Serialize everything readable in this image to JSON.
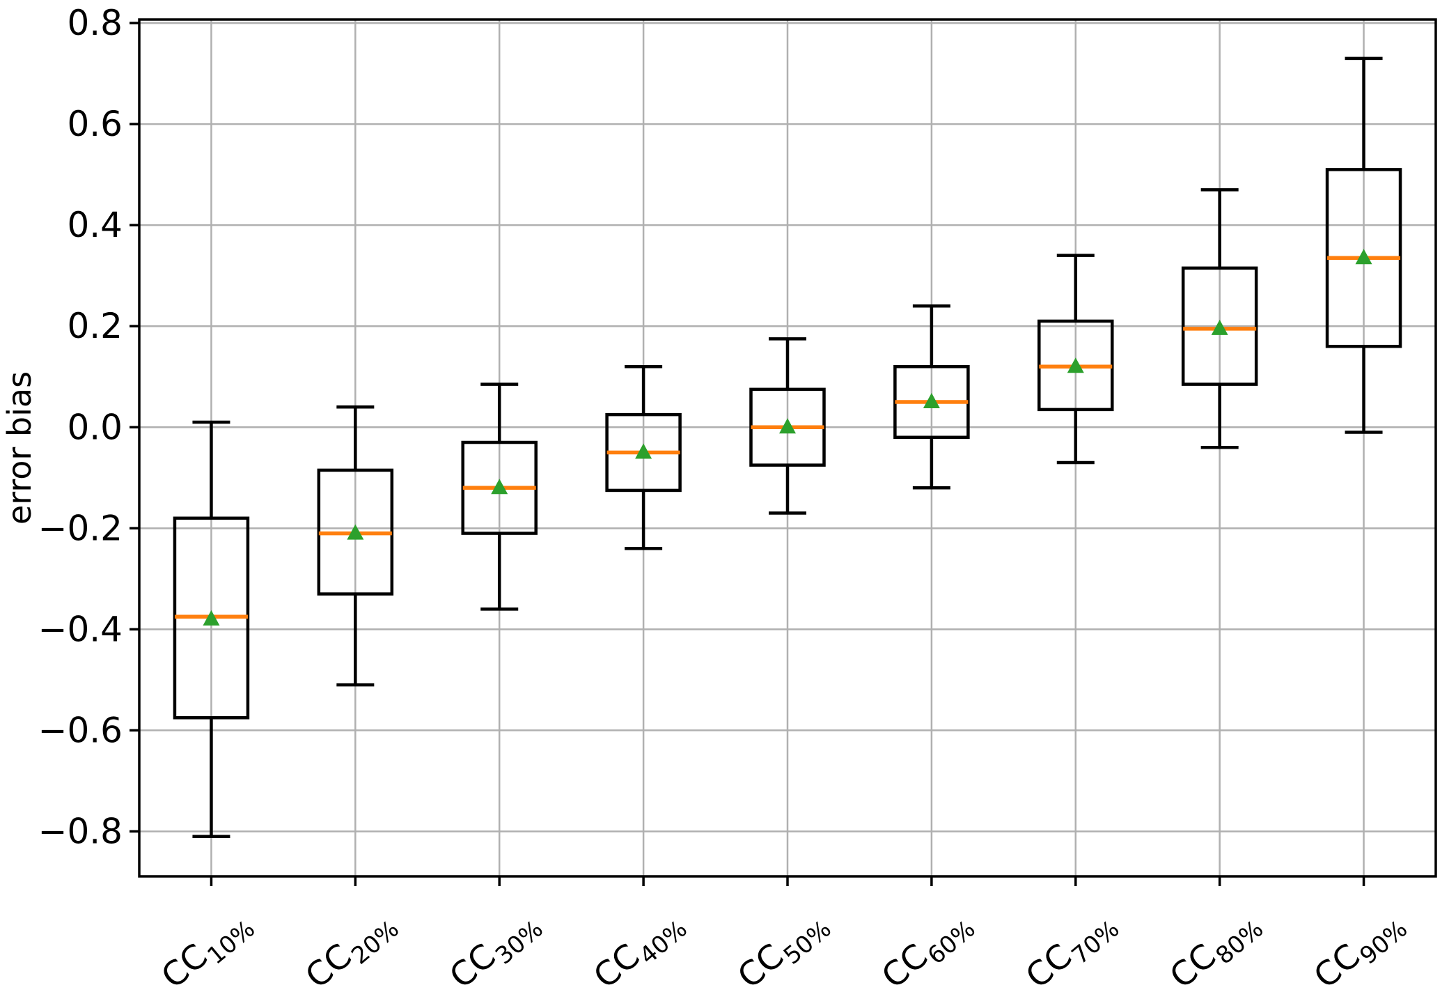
{
  "chart_data": {
    "type": "boxplot",
    "title": "",
    "xlabel": "",
    "ylabel": "error bias",
    "grid": true,
    "legend": "none",
    "ylim": [
      -0.889,
      0.807
    ],
    "yticks": [
      {
        "value": 0.8,
        "label": "0.8"
      },
      {
        "value": 0.6,
        "label": "0.6"
      },
      {
        "value": 0.4,
        "label": "0.4"
      },
      {
        "value": 0.2,
        "label": "0.2"
      },
      {
        "value": 0.0,
        "label": "0.0"
      },
      {
        "value": -0.2,
        "label": "−0.2"
      },
      {
        "value": -0.4,
        "label": "−0.4"
      },
      {
        "value": -0.6,
        "label": "−0.6"
      },
      {
        "value": -0.8,
        "label": "−0.8"
      }
    ],
    "categories": [
      "CC10%",
      "CC20%",
      "CC30%",
      "CC40%",
      "CC50%",
      "CC60%",
      "CC70%",
      "CC80%",
      "CC90%"
    ],
    "boxes": [
      {
        "label_base": "CC",
        "label_sub": "10%",
        "whislo": -0.81,
        "q1": -0.575,
        "med": -0.375,
        "mean": -0.38,
        "q3": -0.18,
        "whishi": 0.01
      },
      {
        "label_base": "CC",
        "label_sub": "20%",
        "whislo": -0.51,
        "q1": -0.33,
        "med": -0.21,
        "mean": -0.21,
        "q3": -0.085,
        "whishi": 0.04
      },
      {
        "label_base": "CC",
        "label_sub": "30%",
        "whislo": -0.36,
        "q1": -0.21,
        "med": -0.12,
        "mean": -0.12,
        "q3": -0.03,
        "whishi": 0.085
      },
      {
        "label_base": "CC",
        "label_sub": "40%",
        "whislo": -0.24,
        "q1": -0.125,
        "med": -0.05,
        "mean": -0.05,
        "q3": 0.025,
        "whishi": 0.12
      },
      {
        "label_base": "CC",
        "label_sub": "50%",
        "whislo": -0.17,
        "q1": -0.075,
        "med": 0.0,
        "mean": 0.0,
        "q3": 0.075,
        "whishi": 0.175
      },
      {
        "label_base": "CC",
        "label_sub": "60%",
        "whislo": -0.12,
        "q1": -0.02,
        "med": 0.05,
        "mean": 0.05,
        "q3": 0.12,
        "whishi": 0.24
      },
      {
        "label_base": "CC",
        "label_sub": "70%",
        "whislo": -0.07,
        "q1": 0.035,
        "med": 0.12,
        "mean": 0.12,
        "q3": 0.21,
        "whishi": 0.34
      },
      {
        "label_base": "CC",
        "label_sub": "80%",
        "whislo": -0.04,
        "q1": 0.085,
        "med": 0.195,
        "mean": 0.195,
        "q3": 0.315,
        "whishi": 0.47
      },
      {
        "label_base": "CC",
        "label_sub": "90%",
        "whislo": -0.01,
        "q1": 0.16,
        "med": 0.335,
        "mean": 0.335,
        "q3": 0.51,
        "whishi": 0.73
      }
    ],
    "mean_marker": "triangle-up",
    "colors": {
      "box": "#000000",
      "whisker": "#000000",
      "median": "#ff7f0e",
      "mean_marker": "#2ca02c",
      "grid": "#b0b0b0",
      "axis": "#000000",
      "background": "#ffffff"
    }
  }
}
